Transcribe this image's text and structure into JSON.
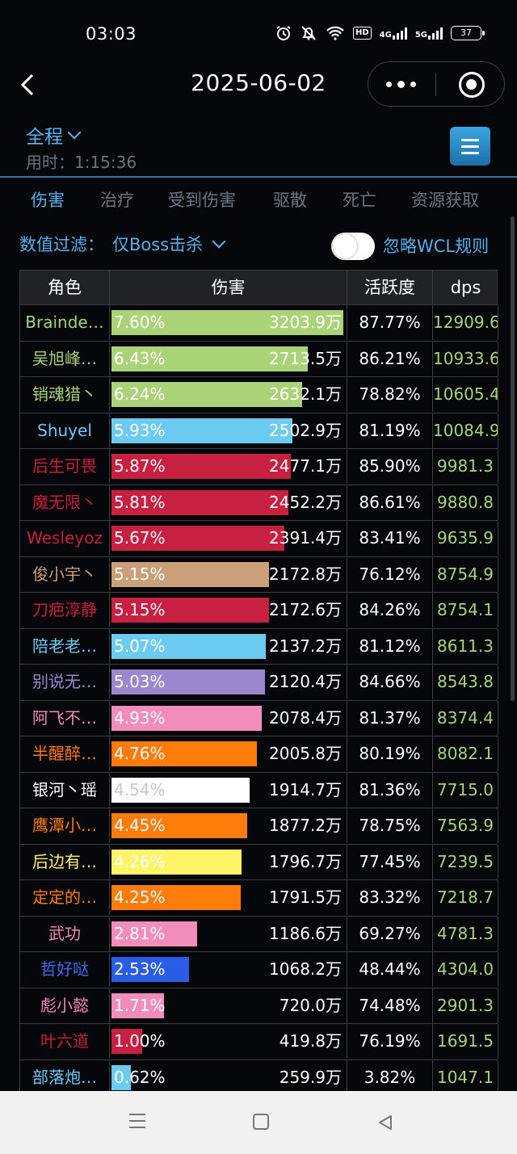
{
  "status_bar": {
    "time": "03:03",
    "hd_label": "HD",
    "net1": "4G",
    "net2": "5G",
    "battery": "37"
  },
  "nav": {
    "title": "2025-06-02"
  },
  "header": {
    "range_label": "全程",
    "use_time": "用时：1:15:36"
  },
  "tabs": [
    {
      "label": "伤害",
      "active": true
    },
    {
      "label": "治疗",
      "active": false
    },
    {
      "label": "受到伤害",
      "active": false
    },
    {
      "label": "驱散",
      "active": false
    },
    {
      "label": "死亡",
      "active": false
    },
    {
      "label": "资源获取",
      "active": false
    }
  ],
  "filter": {
    "label": "数值过滤：",
    "value": "仅Boss击杀",
    "toggle_on": false,
    "ignore_label": "忽略WCL规则"
  },
  "table": {
    "headers": [
      "角色",
      "伤害",
      "活跃度",
      "dps"
    ],
    "rows": [
      {
        "name": "Brainde…",
        "name_color": "#aad277",
        "pct": "7.60%",
        "fill": 1.0,
        "amount": "3203.9万",
        "activity": "87.77%",
        "dps": "12909.6",
        "bar_color": "#aad277"
      },
      {
        "name": "吴旭峰…",
        "name_color": "#aad277",
        "pct": "6.43%",
        "fill": 0.846,
        "amount": "2713.5万",
        "activity": "86.21%",
        "dps": "10933.6",
        "bar_color": "#aad277"
      },
      {
        "name": "销魂猎丶",
        "name_color": "#aad277",
        "pct": "6.24%",
        "fill": 0.821,
        "amount": "2632.1万",
        "activity": "78.82%",
        "dps": "10605.4",
        "bar_color": "#aad277"
      },
      {
        "name": "Shuyel",
        "name_color": "#6ccbf0",
        "pct": "5.93%",
        "fill": 0.78,
        "amount": "2502.9万",
        "activity": "81.19%",
        "dps": "10084.9",
        "bar_color": "#6ccbf0"
      },
      {
        "name": "后生可畏",
        "name_color": "#c82040",
        "pct": "5.87%",
        "fill": 0.772,
        "amount": "2477.1万",
        "activity": "85.90%",
        "dps": "9981.3",
        "bar_color": "#c82040"
      },
      {
        "name": "魔无限丶",
        "name_color": "#c82040",
        "pct": "5.81%",
        "fill": 0.764,
        "amount": "2452.2万",
        "activity": "86.61%",
        "dps": "9880.8",
        "bar_color": "#c82040"
      },
      {
        "name": "Wesleyoz",
        "name_color": "#c82040",
        "pct": "5.67%",
        "fill": 0.746,
        "amount": "2391.4万",
        "activity": "83.41%",
        "dps": "9635.9",
        "bar_color": "#c82040"
      },
      {
        "name": "俊小宇丶",
        "name_color": "#c9a07a",
        "pct": "5.15%",
        "fill": 0.678,
        "amount": "2172.8万",
        "activity": "76.12%",
        "dps": "8754.9",
        "bar_color": "#c9a07a"
      },
      {
        "name": "刀疤淳静",
        "name_color": "#c82040",
        "pct": "5.15%",
        "fill": 0.678,
        "amount": "2172.6万",
        "activity": "84.26%",
        "dps": "8754.1",
        "bar_color": "#c82040"
      },
      {
        "name": "陪老老…",
        "name_color": "#6ccbf0",
        "pct": "5.07%",
        "fill": 0.667,
        "amount": "2137.2万",
        "activity": "81.12%",
        "dps": "8611.3",
        "bar_color": "#6ccbf0"
      },
      {
        "name": "别说无…",
        "name_color": "#9a88cf",
        "pct": "5.03%",
        "fill": 0.662,
        "amount": "2120.4万",
        "activity": "84.66%",
        "dps": "8543.8",
        "bar_color": "#9a88cf"
      },
      {
        "name": "阿飞不…",
        "name_color": "#f28cba",
        "pct": "4.93%",
        "fill": 0.649,
        "amount": "2078.4万",
        "activity": "81.37%",
        "dps": "8374.4",
        "bar_color": "#f28cba"
      },
      {
        "name": "半醒醉…",
        "name_color": "#ff7c0a",
        "pct": "4.76%",
        "fill": 0.626,
        "amount": "2005.8万",
        "activity": "80.19%",
        "dps": "8082.1",
        "bar_color": "#ff7c0a"
      },
      {
        "name": "银河丶瑶",
        "name_color": "#ffffff",
        "pct": "4.54%",
        "fill": 0.597,
        "amount": "1914.7万",
        "activity": "81.36%",
        "dps": "7715.0",
        "bar_color": "#ffffff"
      },
      {
        "name": "鹰潭小…",
        "name_color": "#ff7c0a",
        "pct": "4.45%",
        "fill": 0.586,
        "amount": "1877.2万",
        "activity": "78.75%",
        "dps": "7563.9",
        "bar_color": "#ff7c0a"
      },
      {
        "name": "后边有…",
        "name_color": "#fff468",
        "pct": "4.26%",
        "fill": 0.561,
        "amount": "1796.7万",
        "activity": "77.45%",
        "dps": "7239.5",
        "bar_color": "#fff468"
      },
      {
        "name": "定定的…",
        "name_color": "#ff7c0a",
        "pct": "4.25%",
        "fill": 0.559,
        "amount": "1791.5万",
        "activity": "83.32%",
        "dps": "7218.7",
        "bar_color": "#ff7c0a"
      },
      {
        "name": "武功",
        "name_color": "#f28cba",
        "pct": "2.81%",
        "fill": 0.37,
        "amount": "1186.6万",
        "activity": "69.27%",
        "dps": "4781.3",
        "bar_color": "#f28cba"
      },
      {
        "name": "哲好哒",
        "name_color": "#3a6ef0",
        "pct": "2.53%",
        "fill": 0.333,
        "amount": "1068.2万",
        "activity": "48.44%",
        "dps": "4304.0",
        "bar_color": "#2b5ce6"
      },
      {
        "name": "彪小懿",
        "name_color": "#f28cba",
        "pct": "1.71%",
        "fill": 0.225,
        "amount": "720.0万",
        "activity": "74.48%",
        "dps": "2901.3",
        "bar_color": "#f28cba"
      },
      {
        "name": "叶六道",
        "name_color": "#c82040",
        "pct": "1.00%",
        "fill": 0.132,
        "amount": "419.8万",
        "activity": "76.19%",
        "dps": "1691.5",
        "bar_color": "#c82040"
      },
      {
        "name": "部落炮…",
        "name_color": "#6ccbf0",
        "pct": "0.62%",
        "fill": 0.082,
        "amount": "259.9万",
        "activity": "3.82%",
        "dps": "1047.1",
        "bar_color": "#6ccbf0"
      }
    ]
  },
  "icons": {
    "back": "chevron-left-icon",
    "more": "more-dots-icon",
    "close": "target-close-icon",
    "menu": "hamburger-menu-icon"
  }
}
